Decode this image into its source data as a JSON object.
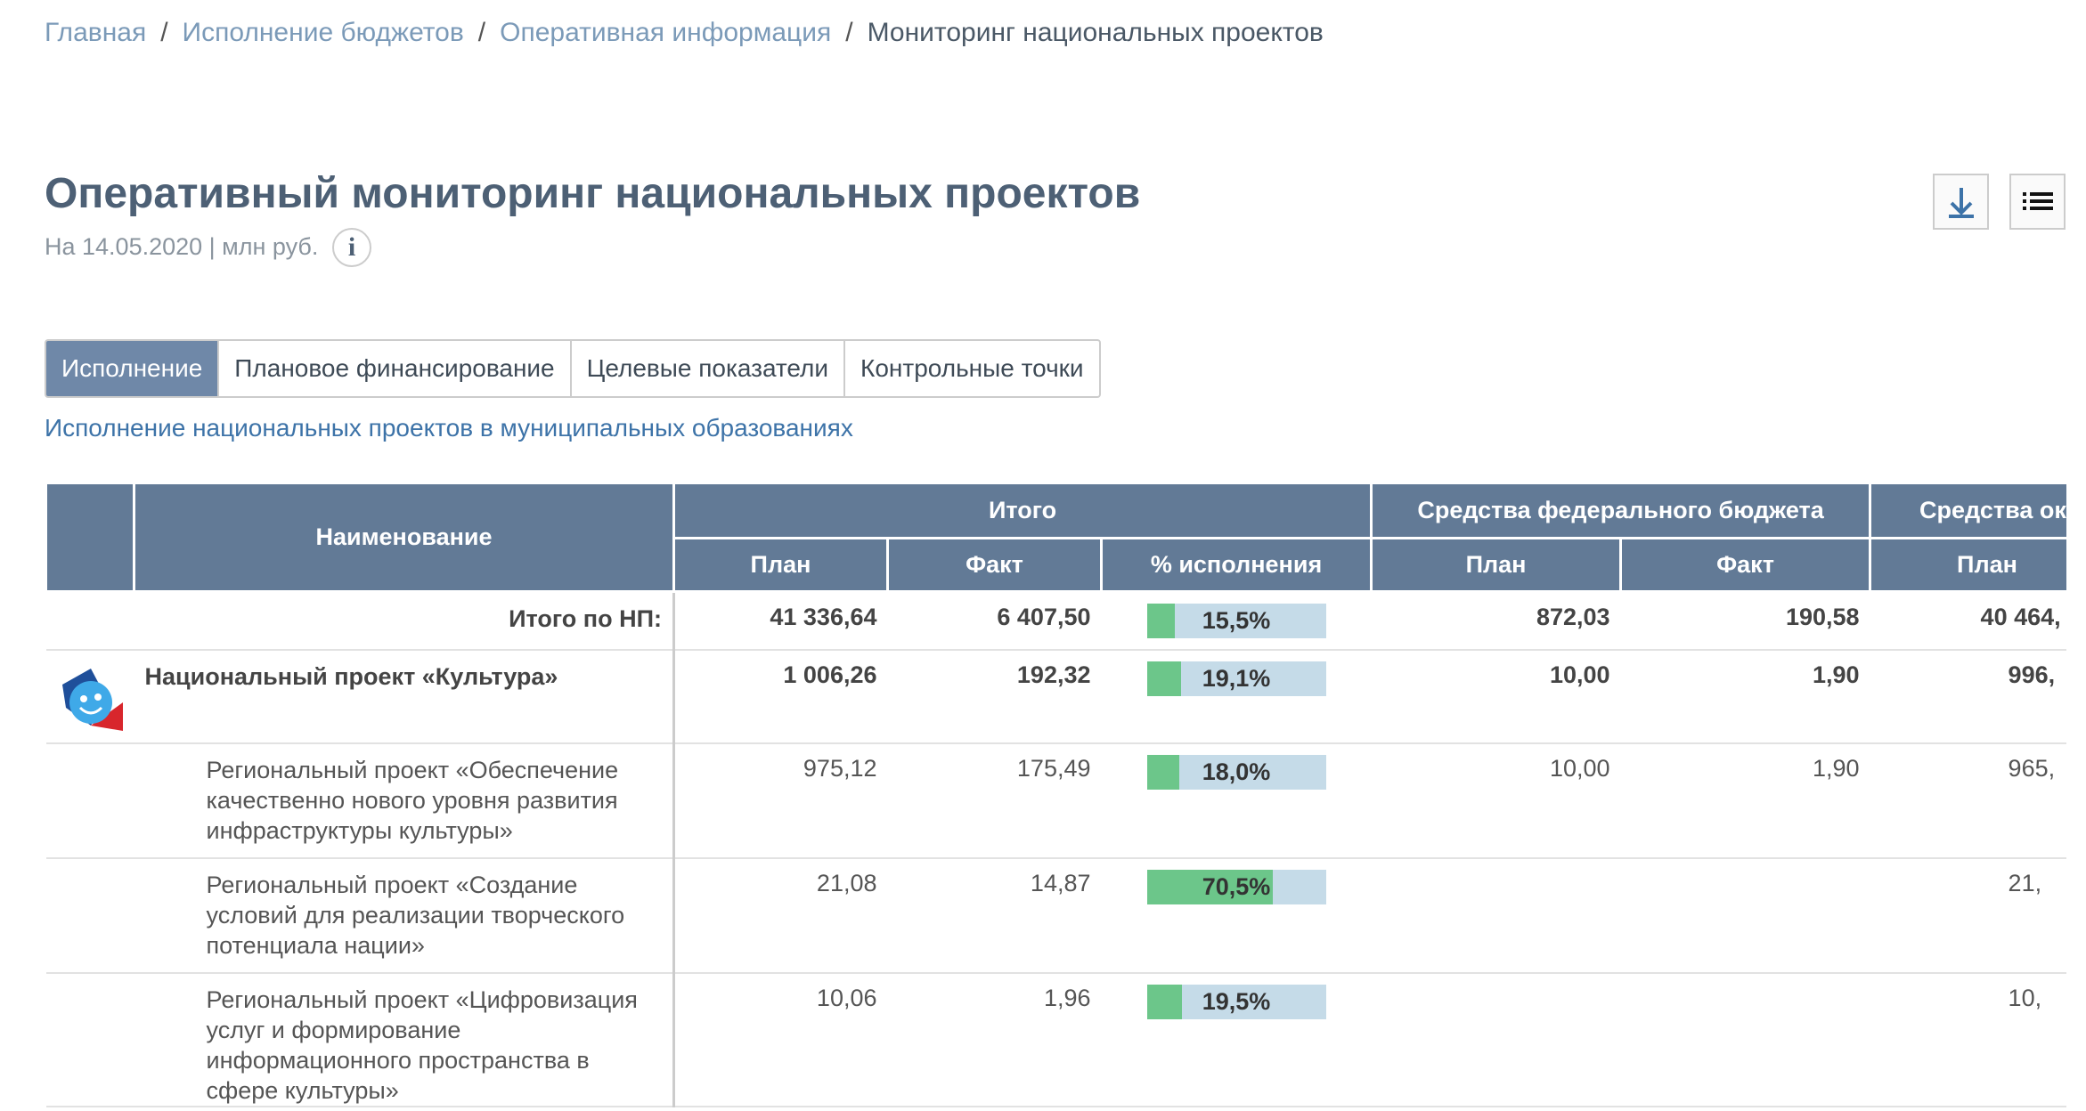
{
  "breadcrumbs": [
    "Главная",
    "Исполнение бюджетов",
    "Оперативная информация",
    "Мониторинг национальных проектов"
  ],
  "header": {
    "title": "Оперативный мониторинг национальных проектов",
    "subtitle": "На 14.05.2020 | млн руб."
  },
  "tabs": [
    "Исполнение",
    "Плановое финансирование",
    "Целевые показатели",
    "Контрольные точки"
  ],
  "link": "Исполнение национальных проектов в муниципальных образованиях",
  "table": {
    "header": {
      "name": "Наименование",
      "total": "Итого",
      "federal": "Средства федерального бюджета",
      "other": "Средства ок",
      "plan": "План",
      "fact": "Факт",
      "pct": "% исполнения"
    },
    "rows": [
      {
        "name": "Итого по НП:",
        "plan": "41 336,64",
        "fact": "6 407,50",
        "pct": {
          "value": 15.5,
          "label": "15,5%"
        },
        "fed_plan": "872,03",
        "fed_fact": "190,58",
        "other_plan": "40 464,"
      },
      {
        "name": "Национальный проект «Культура»",
        "plan": "1 006,26",
        "fact": "192,32",
        "pct": {
          "value": 19.1,
          "label": "19,1%"
        },
        "fed_plan": "10,00",
        "fed_fact": "1,90",
        "other_plan": "996,"
      },
      {
        "name": "Региональный проект «Обеспечение качественно нового уровня развития инфраструктуры культуры»",
        "plan": "975,12",
        "fact": "175,49",
        "pct": {
          "value": 18.0,
          "label": "18,0%"
        },
        "fed_plan": "10,00",
        "fed_fact": "1,90",
        "other_plan": "965,"
      },
      {
        "name": "Региональный проект «Создание условий для реализации творческого потенциала нации»",
        "plan": "21,08",
        "fact": "14,87",
        "pct": {
          "value": 70.5,
          "label": "70,5%"
        },
        "fed_plan": null,
        "fed_fact": null,
        "other_plan": "21,"
      },
      {
        "name": "Региональный проект «Цифровизация услуг и формирование информационного пространства в сфере культуры»",
        "plan": "10,06",
        "fact": "1,96",
        "pct": {
          "value": 19.5,
          "label": "19,5%"
        },
        "fed_plan": null,
        "fed_fact": null,
        "other_plan": "10,"
      }
    ]
  }
}
